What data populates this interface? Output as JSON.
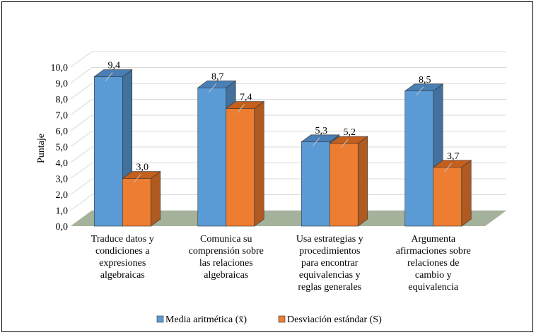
{
  "chart_data": {
    "type": "bar",
    "categories": [
      "Traduce datos y condiciones a expresiones algebraicas",
      "Comunica su comprensión sobre las relaciones algebraicas",
      "Usa estrategias y procedimientos para encontrar equivalencias y reglas generales",
      "Argumenta afirmaciones sobre relaciones de cambio y equivalencia"
    ],
    "category_lines": [
      [
        "Traduce datos y",
        "condiciones a",
        "expresiones",
        "algebraicas"
      ],
      [
        "Comunica su",
        "comprensión sobre",
        "las relaciones",
        "algebraicas"
      ],
      [
        "Usa estrategias y",
        "procedimientos",
        "para encontrar",
        "equivalencias y",
        "reglas generales"
      ],
      [
        "Argumenta",
        "afirmaciones sobre",
        "relaciones de",
        "cambio y",
        "equivalencia"
      ]
    ],
    "series": [
      {
        "name": "Media aritmética (x̄)",
        "values": [
          9.4,
          8.7,
          5.3,
          8.5
        ],
        "labels": [
          "9,4",
          "8,7",
          "5,3",
          "8,5"
        ],
        "color": "#5b9bd5",
        "side_color": "#41719c",
        "top_color": "#4a7fb5"
      },
      {
        "name": "Desviación estándar (S)",
        "values": [
          3.0,
          7.4,
          5.2,
          3.7
        ],
        "labels": [
          "3,0",
          "7,4",
          "5,2",
          "3,7"
        ],
        "color": "#ed7d31",
        "side_color": "#ae5a21",
        "top_color": "#c55f1d"
      }
    ],
    "ylabel": "Puntaje",
    "ylim": [
      0,
      10
    ],
    "yticks": [
      "0,0",
      "1,0",
      "2,0",
      "3,0",
      "4,0",
      "5,0",
      "6,0",
      "7,0",
      "8,0",
      "9,0",
      "10,0"
    ],
    "grid": true,
    "floor_color": "#a5b29b",
    "legend_position": "bottom"
  }
}
